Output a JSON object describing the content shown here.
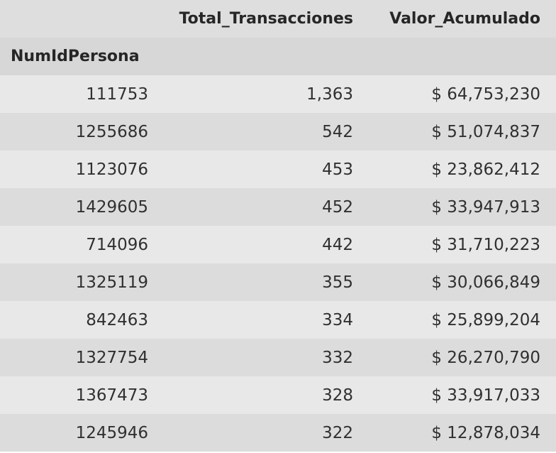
{
  "table": {
    "columns": [
      "",
      "Total_Transacciones",
      "Valor_Acumulado"
    ],
    "index_name": "NumIdPersona",
    "rows": [
      {
        "id": "111753",
        "total": "1,363",
        "valor": "$ 64,753,230"
      },
      {
        "id": "1255686",
        "total": "542",
        "valor": "$ 51,074,837"
      },
      {
        "id": "1123076",
        "total": "453",
        "valor": "$ 23,862,412"
      },
      {
        "id": "1429605",
        "total": "452",
        "valor": "$ 33,947,913"
      },
      {
        "id": "714096",
        "total": "442",
        "valor": "$ 31,710,223"
      },
      {
        "id": "1325119",
        "total": "355",
        "valor": "$ 30,066,849"
      },
      {
        "id": "842463",
        "total": "334",
        "valor": "$ 25,899,204"
      },
      {
        "id": "1327754",
        "total": "332",
        "valor": "$ 26,270,790"
      },
      {
        "id": "1367473",
        "total": "328",
        "valor": "$ 33,917,033"
      },
      {
        "id": "1245946",
        "total": "322",
        "valor": "$ 12,878,034"
      }
    ]
  }
}
